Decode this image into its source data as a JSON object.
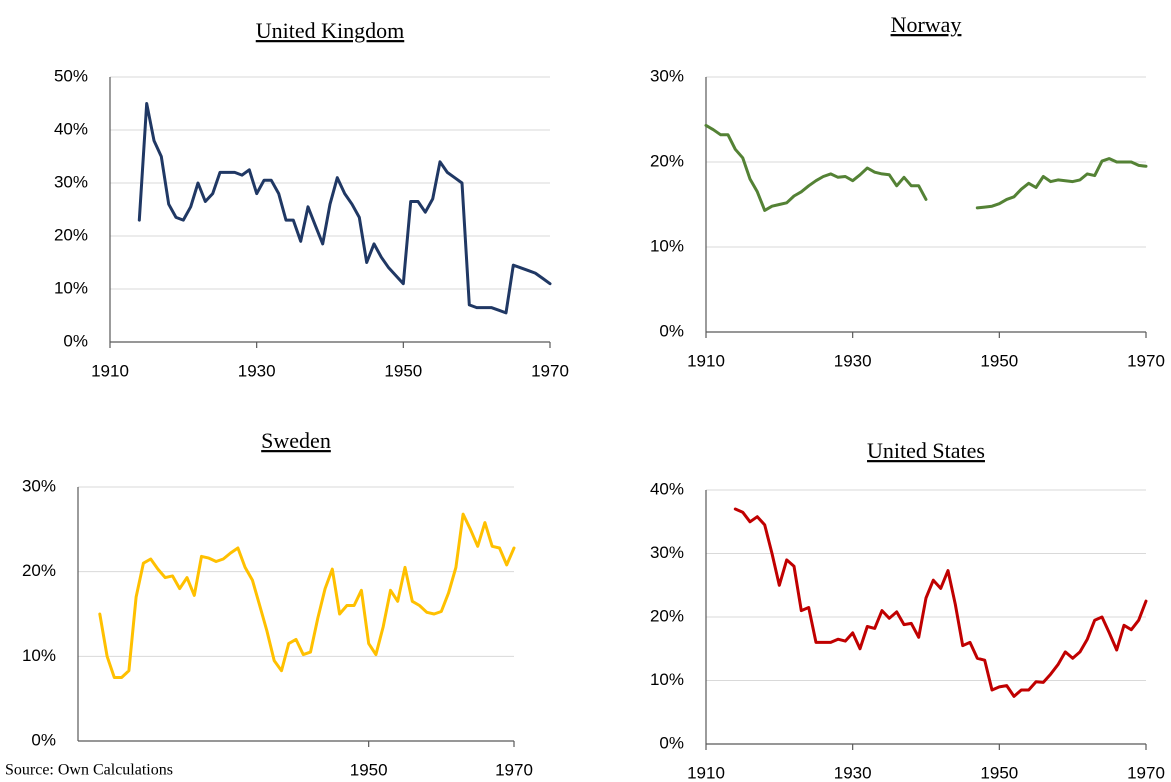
{
  "source": "Source: Own Calculations",
  "chart_data": [
    {
      "type": "line",
      "title": "United Kingdom",
      "color": "#203864",
      "x": [
        1914,
        1915,
        1916,
        1917,
        1918,
        1919,
        1920,
        1921,
        1922,
        1923,
        1924,
        1925,
        1926,
        1927,
        1928,
        1929,
        1930,
        1931,
        1932,
        1933,
        1934,
        1935,
        1936,
        1937,
        1938,
        1939,
        1940,
        1941,
        1942,
        1943,
        1944,
        1945,
        1946,
        1947,
        1948,
        1949,
        1950,
        1951,
        1952,
        1953,
        1954,
        1955,
        1956,
        1957,
        1958,
        1959,
        1960,
        1961,
        1962,
        1963,
        1964,
        1965,
        1966,
        1967,
        1968,
        1969,
        1970
      ],
      "values": [
        23,
        45,
        38,
        35,
        26,
        23.5,
        23,
        25.5,
        30,
        26.5,
        28,
        32,
        32,
        32,
        31.5,
        32.5,
        28,
        30.5,
        30.5,
        28,
        23,
        23,
        19,
        25.5,
        22,
        18.5,
        26,
        31,
        28,
        26,
        23.5,
        15,
        18.5,
        16,
        14,
        12.5,
        11,
        26.5,
        26.5,
        24.5,
        27,
        34,
        32,
        31,
        30,
        7,
        6.5,
        6.5,
        6.5,
        6,
        5.5,
        14.5,
        14,
        13.5,
        13,
        12,
        11
      ],
      "xlim": [
        1910,
        1970
      ],
      "xticks": [
        1910,
        1930,
        1950,
        1970
      ],
      "ylim": [
        0,
        50
      ],
      "yticks": [
        {
          "value": 0,
          "label": "0%"
        },
        {
          "value": 10,
          "label": "10%"
        },
        {
          "value": 20,
          "label": "20%"
        },
        {
          "value": 30,
          "label": "30%"
        },
        {
          "value": 40,
          "label": "40%"
        },
        {
          "value": 50,
          "label": "50%"
        }
      ],
      "grid": true
    },
    {
      "type": "line",
      "title": "Norway",
      "color": "#548235",
      "x": [
        1910,
        1911,
        1912,
        1913,
        1914,
        1915,
        1916,
        1917,
        1918,
        1919,
        1920,
        1921,
        1922,
        1923,
        1924,
        1925,
        1926,
        1927,
        1928,
        1929,
        1930,
        1931,
        1932,
        1933,
        1934,
        1935,
        1936,
        1937,
        1938,
        1939,
        1940,
        1941,
        1942,
        1943,
        1944,
        1945,
        1946,
        1947,
        1948,
        1949,
        1950,
        1951,
        1952,
        1953,
        1954,
        1955,
        1956,
        1957,
        1958,
        1959,
        1960,
        1961,
        1962,
        1963,
        1964,
        1965,
        1966,
        1967,
        1968,
        1969,
        1970
      ],
      "values": [
        24.3,
        23.8,
        23.2,
        23.2,
        21.5,
        20.5,
        18,
        16.5,
        14.3,
        14.8,
        15,
        15.2,
        16,
        16.5,
        17.2,
        17.8,
        18.3,
        18.6,
        18.2,
        18.3,
        17.8,
        18.5,
        19.3,
        18.8,
        18.6,
        18.5,
        17.2,
        18.2,
        17.2,
        17.2,
        15.6,
        null,
        null,
        null,
        null,
        null,
        null,
        14.6,
        14.7,
        14.8,
        15.1,
        15.6,
        15.9,
        16.8,
        17.5,
        17,
        18.3,
        17.7,
        17.9,
        17.8,
        17.7,
        17.9,
        18.6,
        18.4,
        20.1,
        20.4,
        20,
        20,
        20,
        19.6,
        19.5
      ],
      "xlim": [
        1910,
        1970
      ],
      "xticks": [
        1910,
        1930,
        1950,
        1970
      ],
      "ylim": [
        0,
        30
      ],
      "yticks": [
        {
          "value": 0,
          "label": "0%"
        },
        {
          "value": 10,
          "label": "10%"
        },
        {
          "value": 20,
          "label": "20%"
        },
        {
          "value": 30,
          "label": "30%"
        }
      ],
      "grid": true
    },
    {
      "type": "line",
      "title": "Sweden",
      "color": "#ffc000",
      "x": [
        1913,
        1914,
        1915,
        1916,
        1917,
        1918,
        1919,
        1920,
        1921,
        1922,
        1923,
        1924,
        1925,
        1926,
        1927,
        1928,
        1929,
        1930,
        1931,
        1932,
        1933,
        1934,
        1935,
        1936,
        1937,
        1938,
        1939,
        1940,
        1941,
        1942,
        1943,
        1944,
        1945,
        1946,
        1947,
        1948,
        1949,
        1950,
        1951,
        1952,
        1953,
        1954,
        1955,
        1956,
        1957,
        1958,
        1959,
        1960,
        1961,
        1962,
        1963,
        1964,
        1965,
        1966,
        1967,
        1968,
        1969,
        1970
      ],
      "values": [
        15,
        10,
        7.5,
        7.5,
        8.3,
        17,
        21,
        21.5,
        20.3,
        19.3,
        19.5,
        18,
        19.3,
        17.2,
        21.8,
        21.6,
        21.2,
        21.5,
        22.2,
        22.8,
        20.5,
        19,
        16,
        13,
        9.5,
        8.3,
        11.5,
        12,
        10.2,
        10.5,
        14.5,
        18,
        20.3,
        15,
        16,
        16,
        17.8,
        11.5,
        10.2,
        13.5,
        17.8,
        16.5,
        20.5,
        16.5,
        16,
        15.2,
        15,
        15.3,
        17.5,
        20.5,
        26.8,
        25,
        23,
        25.8,
        23,
        22.8,
        20.8,
        22.8
      ],
      "xlim": [
        1910,
        1970
      ],
      "xticks": [
        1950,
        1970
      ],
      "ylim": [
        0,
        30
      ],
      "yticks": [
        {
          "value": 0,
          "label": "0%"
        },
        {
          "value": 10,
          "label": "10%"
        },
        {
          "value": 20,
          "label": "20%"
        },
        {
          "value": 30,
          "label": "30%"
        }
      ],
      "grid": true
    },
    {
      "type": "line",
      "title": "United States",
      "color": "#c00000",
      "x": [
        1914,
        1915,
        1916,
        1917,
        1918,
        1919,
        1920,
        1921,
        1922,
        1923,
        1924,
        1925,
        1926,
        1927,
        1928,
        1929,
        1930,
        1931,
        1932,
        1933,
        1934,
        1935,
        1936,
        1937,
        1938,
        1939,
        1940,
        1941,
        1942,
        1943,
        1944,
        1945,
        1946,
        1947,
        1948,
        1949,
        1950,
        1951,
        1952,
        1953,
        1954,
        1955,
        1956,
        1957,
        1958,
        1959,
        1960,
        1961,
        1962,
        1963,
        1964,
        1965,
        1966,
        1967,
        1968,
        1969,
        1970
      ],
      "values": [
        37,
        36.5,
        35,
        35.8,
        34.5,
        30,
        25,
        29,
        28,
        21,
        21.5,
        16,
        16,
        16,
        16.5,
        16.2,
        17.5,
        15,
        18.5,
        18.2,
        21,
        19.8,
        20.8,
        18.8,
        19,
        16.8,
        23,
        25.8,
        24.5,
        27.3,
        22,
        15.5,
        16,
        13.5,
        13.2,
        8.5,
        9,
        9.2,
        7.5,
        8.5,
        8.5,
        9.8,
        9.7,
        11,
        12.5,
        14.5,
        13.5,
        14.5,
        16.5,
        19.5,
        20,
        17.5,
        14.8,
        18.7,
        18,
        19.5,
        22.5
      ],
      "xlim": [
        1910,
        1970
      ],
      "xticks": [
        1910,
        1930,
        1950,
        1970
      ],
      "ylim": [
        0,
        40
      ],
      "yticks": [
        {
          "value": 0,
          "label": "0%"
        },
        {
          "value": 10,
          "label": "10%"
        },
        {
          "value": 20,
          "label": "20%"
        },
        {
          "value": 30,
          "label": "30%"
        },
        {
          "value": 40,
          "label": "40%"
        }
      ],
      "grid": true
    }
  ]
}
